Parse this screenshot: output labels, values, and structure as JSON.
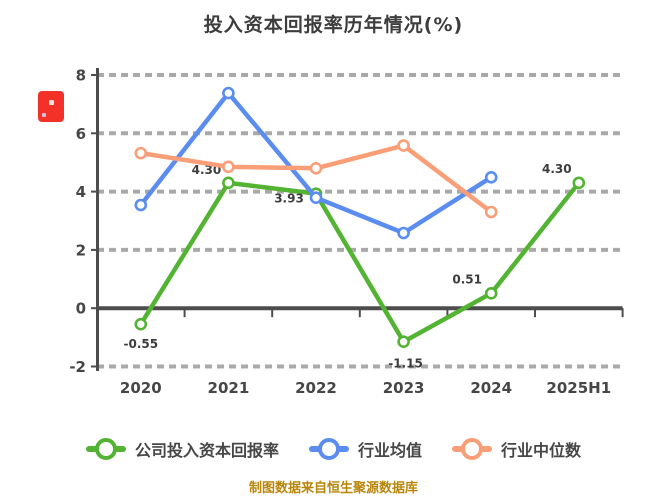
{
  "title": "投入资本回报率历年情况(%)",
  "icons": {
    "red_badge": "red-square-logo-icon"
  },
  "legend": {
    "items": [
      {
        "key": "company-roic",
        "label": "公司投入资本回报率",
        "color": "#53b332"
      },
      {
        "key": "industry-mean",
        "label": "行业均值",
        "color": "#5b8cf0"
      },
      {
        "key": "industry-median",
        "label": "行业中位数",
        "color": "#fa9e77"
      }
    ]
  },
  "footer": {
    "caption": "制图数据来自恒生聚源数据库"
  },
  "chart_data": {
    "type": "line",
    "title": "投入资本回报率历年情况(%)",
    "categories": [
      "2020",
      "2021",
      "2022",
      "2023",
      "2024",
      "2025H1"
    ],
    "series": [
      {
        "name": "公司投入资本回报率",
        "key": "company-roic",
        "color": "#53b332",
        "values": [
          -0.55,
          4.3,
          3.93,
          -1.15,
          0.51,
          4.3
        ],
        "point_labels": [
          "-0.55",
          "4.30",
          "3.93",
          "-1.15",
          "0.51",
          "4.30"
        ]
      },
      {
        "name": "行业均值",
        "key": "industry-mean",
        "color": "#5b8cf0",
        "values": [
          3.54,
          7.38,
          3.79,
          2.58,
          4.49,
          null
        ],
        "point_labels": []
      },
      {
        "name": "行业中位数",
        "key": "industry-median",
        "color": "#fa9e77",
        "values": [
          5.32,
          4.85,
          4.8,
          5.58,
          3.3,
          null
        ],
        "point_labels": []
      }
    ],
    "xlabel": "",
    "ylabel": "",
    "ylim": [
      -2,
      8
    ],
    "yticks": [
      -2,
      0,
      2,
      4,
      6,
      8
    ],
    "grid": "dashed-horizontal",
    "legend_position": "bottom",
    "marker_style": "hollow-circle"
  }
}
